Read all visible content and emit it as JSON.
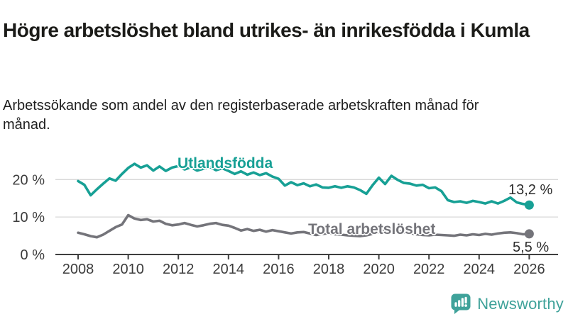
{
  "header": {
    "title": "Högre arbetslöshet bland utrikes- än inrikesfödda i Kumla",
    "subtitle": "Arbetssökande som andel av den registerbaserade arbetskraften månad för månad."
  },
  "chart_data": {
    "type": "line",
    "title": "Högre arbetslöshet bland utrikes- än inrikesfödda i Kumla",
    "subtitle": "Arbetssökande som andel av den registerbaserade arbetskraften månad för månad.",
    "unit": "%",
    "grid": "horizontal",
    "x_start": 2008,
    "x_step_years": 0.25,
    "x_ticks": [
      2008,
      2010,
      2012,
      2014,
      2016,
      2018,
      2020,
      2022,
      2024,
      2026
    ],
    "y_ticks": [
      {
        "value": 20,
        "label": "20 %"
      },
      {
        "value": 10,
        "label": "10 %"
      },
      {
        "value": 0,
        "label": "0 %"
      }
    ],
    "ylim": [
      0,
      26.5
    ],
    "series": [
      {
        "name": "Utlandsfödda",
        "color": "#17a095",
        "end_label": "13,2 %",
        "end_value": 13.2,
        "values": [
          19.6,
          18.6,
          15.8,
          17.4,
          18.9,
          20.3,
          19.7,
          21.5,
          23.1,
          24.2,
          23.2,
          23.8,
          22.4,
          23.5,
          22.3,
          23.2,
          23.6,
          22.7,
          23.3,
          22.4,
          22.9,
          23.4,
          22.5,
          23.0,
          22.3,
          21.5,
          22.2,
          21.3,
          21.9,
          21.2,
          21.7,
          20.8,
          20.2,
          18.4,
          19.3,
          18.5,
          19.0,
          18.2,
          18.7,
          17.9,
          17.8,
          18.2,
          17.8,
          18.2,
          17.9,
          17.2,
          16.2,
          18.5,
          20.5,
          18.8,
          21.0,
          19.9,
          19.1,
          18.9,
          18.4,
          18.6,
          17.7,
          17.9,
          16.9,
          14.5,
          14.0,
          14.2,
          13.8,
          14.3,
          14.0,
          13.6,
          14.2,
          13.6,
          14.3,
          15.2,
          13.9,
          13.5,
          13.2
        ]
      },
      {
        "name": "Total arbetslöshet",
        "color": "#74747a",
        "end_label": "5,5 %",
        "end_value": 5.5,
        "values": [
          5.8,
          5.4,
          4.9,
          4.6,
          5.3,
          6.3,
          7.3,
          8.0,
          10.5,
          9.6,
          9.2,
          9.4,
          8.8,
          9.0,
          8.2,
          7.8,
          8.0,
          8.4,
          7.9,
          7.5,
          7.8,
          8.2,
          8.4,
          7.9,
          7.7,
          7.1,
          6.4,
          6.8,
          6.3,
          6.6,
          6.1,
          6.5,
          6.2,
          5.9,
          5.6,
          5.9,
          6.0,
          5.6,
          5.2,
          5.5,
          5.7,
          5.4,
          5.3,
          5.1,
          5.0,
          4.9,
          5.1,
          5.5,
          6.0,
          6.6,
          6.8,
          6.4,
          6.0,
          5.7,
          5.4,
          5.2,
          5.1,
          5.3,
          5.2,
          5.1,
          5.0,
          5.3,
          5.1,
          5.4,
          5.2,
          5.5,
          5.3,
          5.6,
          5.8,
          5.9,
          5.7,
          5.4,
          5.5
        ]
      }
    ]
  },
  "footer": {
    "brand": "Newsworthy",
    "logo_icon": "bar-chart-speech-bubble-icon",
    "logo_color": "#3fa29a"
  }
}
